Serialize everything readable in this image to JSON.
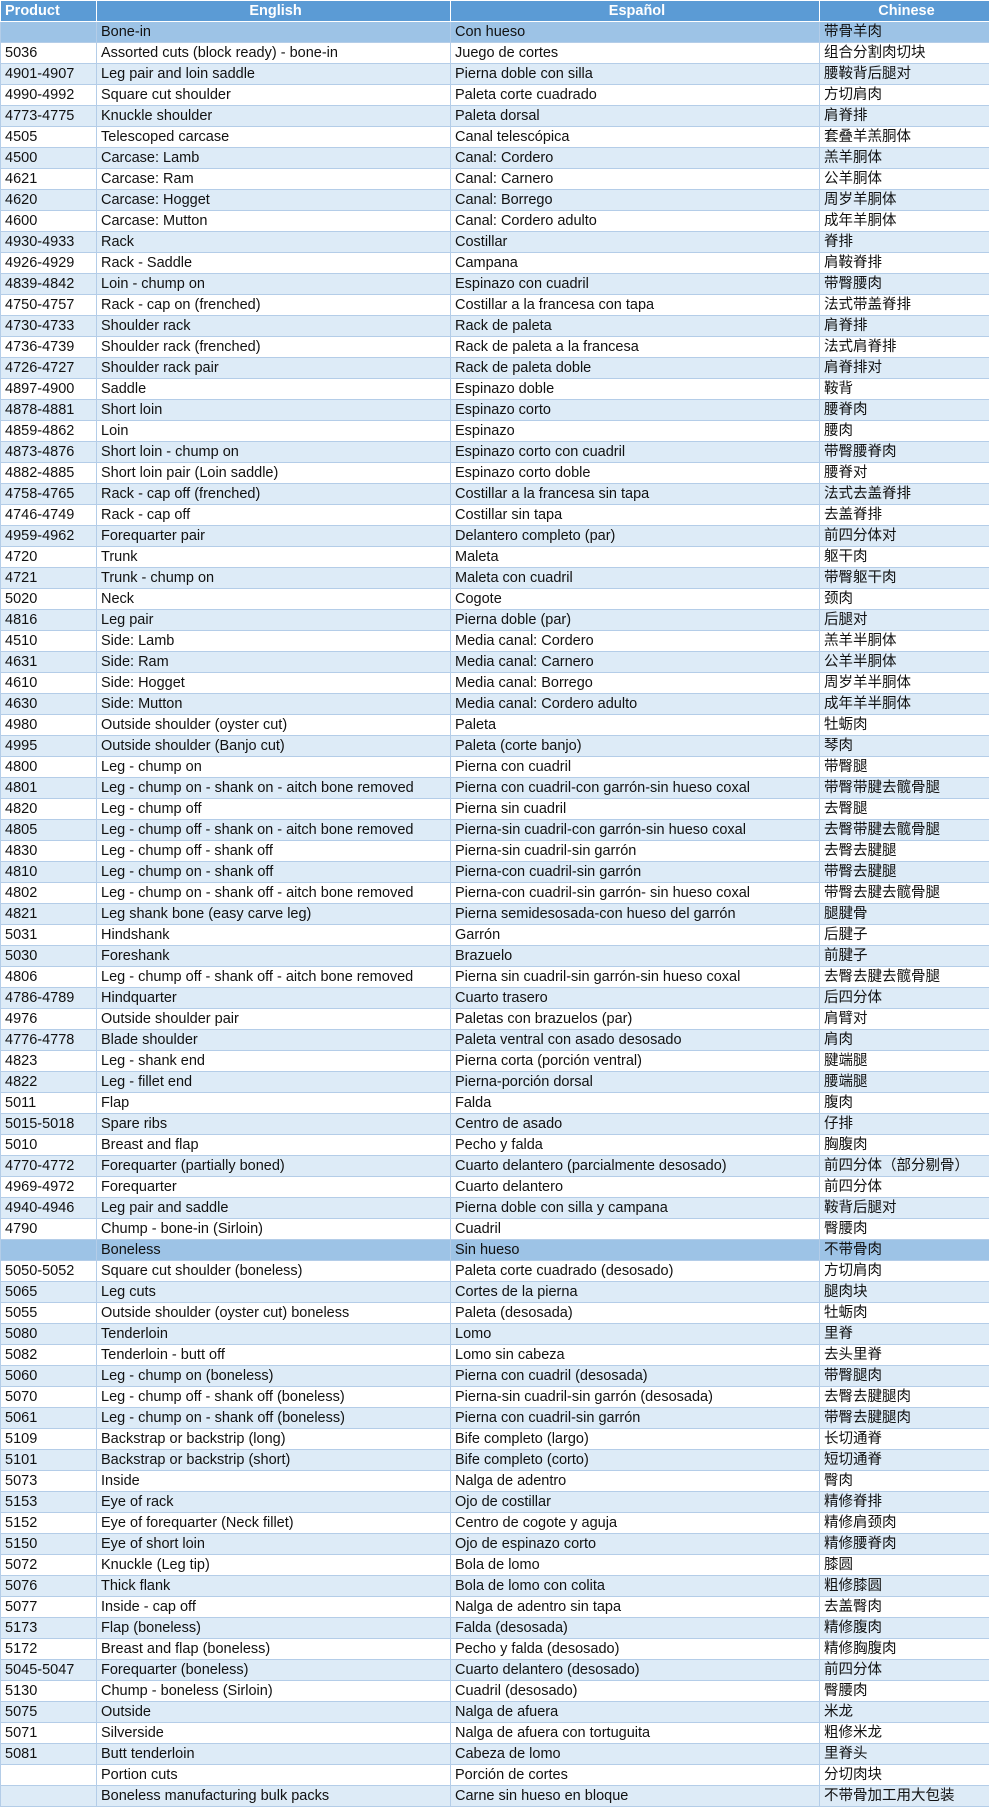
{
  "table": {
    "header": [
      "Product",
      "English",
      "Español",
      "Chinese"
    ],
    "groups": [
      {
        "heading": [
          "Bone-in",
          "Con hueso",
          "带骨羊肉"
        ],
        "rows": [
          [
            "5036",
            "Assorted cuts (block ready) - bone-in",
            "Juego de cortes",
            "组合分割肉切块"
          ],
          [
            "4901-4907",
            "Leg pair and loin saddle",
            "Pierna doble con silla",
            "腰鞍背后腿对"
          ],
          [
            "4990-4992",
            "Square cut shoulder",
            "Paleta corte cuadrado",
            "方切肩肉"
          ],
          [
            "4773-4775",
            "Knuckle shoulder",
            "Paleta dorsal",
            "肩脊排"
          ],
          [
            "4505",
            "Telescoped carcase",
            "Canal telescópica",
            "套叠羊羔胴体"
          ],
          [
            "4500",
            "Carcase: Lamb",
            "Canal: Cordero",
            "羔羊胴体"
          ],
          [
            "4621",
            "Carcase: Ram",
            "Canal: Carnero",
            "公羊胴体"
          ],
          [
            "4620",
            "Carcase: Hogget",
            "Canal: Borrego",
            "周岁羊胴体"
          ],
          [
            "4600",
            "Carcase: Mutton",
            "Canal: Cordero adulto",
            "成年羊胴体"
          ],
          [
            "4930-4933",
            "Rack",
            "Costillar",
            "脊排"
          ],
          [
            "4926-4929",
            "Rack - Saddle",
            "Campana",
            "肩鞍脊排"
          ],
          [
            "4839-4842",
            "Loin - chump on",
            "Espinazo con cuadril",
            "带臀腰肉"
          ],
          [
            "4750-4757",
            "Rack - cap on (frenched)",
            "Costillar a la francesa con tapa",
            "法式带盖脊排"
          ],
          [
            "4730-4733",
            "Shoulder rack",
            "Rack de paleta",
            "肩脊排"
          ],
          [
            "4736-4739",
            "Shoulder rack (frenched)",
            "Rack de paleta a la francesa",
            "法式肩脊排"
          ],
          [
            "4726-4727",
            "Shoulder rack pair",
            "Rack de paleta doble",
            "肩脊排对"
          ],
          [
            "4897-4900",
            "Saddle",
            "Espinazo doble",
            "鞍背"
          ],
          [
            "4878-4881",
            "Short loin",
            "Espinazo corto",
            "腰脊肉"
          ],
          [
            "4859-4862",
            "Loin",
            "Espinazo",
            "腰肉"
          ],
          [
            "4873-4876",
            "Short loin - chump on",
            "Espinazo corto con cuadril",
            "带臀腰脊肉"
          ],
          [
            "4882-4885",
            "Short loin pair (Loin saddle)",
            "Espinazo corto doble",
            "腰脊对"
          ],
          [
            "4758-4765",
            "Rack - cap off (frenched)",
            "Costillar a la francesa sin tapa",
            "法式去盖脊排"
          ],
          [
            "4746-4749",
            "Rack - cap off",
            "Costillar sin tapa",
            "去盖脊排"
          ],
          [
            "4959-4962",
            "Forequarter pair",
            "Delantero completo (par)",
            "前四分体对"
          ],
          [
            "4720",
            "Trunk",
            "Maleta",
            "躯干肉"
          ],
          [
            "4721",
            "Trunk - chump on",
            "Maleta con cuadril",
            "带臀躯干肉"
          ],
          [
            "5020",
            "Neck",
            "Cogote",
            "颈肉"
          ],
          [
            "4816",
            "Leg pair",
            "Pierna doble (par)",
            "后腿对"
          ],
          [
            "4510",
            "Side: Lamb",
            "Media canal: Cordero",
            "羔羊半胴体"
          ],
          [
            "4631",
            "Side: Ram",
            "Media canal: Carnero",
            "公羊半胴体"
          ],
          [
            "4610",
            "Side: Hogget",
            "Media canal: Borrego",
            "周岁羊半胴体"
          ],
          [
            "4630",
            "Side: Mutton",
            "Media canal: Cordero adulto",
            "成年羊半胴体"
          ],
          [
            "4980",
            "Outside shoulder (oyster cut)",
            "Paleta",
            "牡蛎肉"
          ],
          [
            "4995",
            "Outside shoulder (Banjo cut)",
            "Paleta (corte banjo)",
            "琴肉"
          ],
          [
            "4800",
            "Leg - chump on",
            "Pierna con cuadril",
            "带臀腿"
          ],
          [
            "4801",
            "Leg - chump on - shank on - aitch bone removed",
            "Pierna con cuadril-con garrón-sin hueso coxal",
            "带臀带腱去髋骨腿"
          ],
          [
            "4820",
            "Leg - chump off",
            "Pierna sin cuadril",
            "去臀腿"
          ],
          [
            "4805",
            "Leg - chump off - shank on - aitch bone removed",
            "Pierna-sin cuadril-con garrón-sin hueso coxal",
            "去臀带腱去髋骨腿"
          ],
          [
            "4830",
            "Leg - chump off - shank off",
            "Pierna-sin cuadril-sin garrón",
            "去臀去腱腿"
          ],
          [
            "4810",
            "Leg - chump on - shank off",
            "Pierna-con cuadril-sin garrón",
            "带臀去腱腿"
          ],
          [
            "4802",
            "Leg - chump on - shank off - aitch bone removed",
            "Pierna-con cuadril-sin garrón- sin hueso coxal",
            "带臀去腱去髋骨腿"
          ],
          [
            "4821",
            "Leg shank bone (easy carve leg)",
            "Pierna semidesosada-con hueso del garrón",
            "腿腱骨"
          ],
          [
            "5031",
            "Hindshank",
            "Garrón",
            "后腱子"
          ],
          [
            "5030",
            "Foreshank",
            "Brazuelo",
            "前腱子"
          ],
          [
            "4806",
            "Leg - chump off - shank off - aitch bone removed",
            "Pierna sin cuadril-sin garrón-sin hueso coxal",
            "去臀去腱去髋骨腿"
          ],
          [
            "4786-4789",
            "Hindquarter",
            "Cuarto trasero",
            "后四分体"
          ],
          [
            "4976",
            "Outside shoulder pair",
            "Paletas con brazuelos (par)",
            "肩臂对"
          ],
          [
            "4776-4778",
            "Blade shoulder",
            "Paleta ventral con asado desosado",
            "肩肉"
          ],
          [
            "4823",
            "Leg - shank end",
            "Pierna corta (porción ventral)",
            "腱端腿"
          ],
          [
            "4822",
            "Leg - fillet end",
            "Pierna-porción dorsal",
            "腰端腿"
          ],
          [
            "5011",
            "Flap",
            "Falda",
            "腹肉"
          ],
          [
            "5015-5018",
            "Spare ribs",
            "Centro de asado",
            "仔排"
          ],
          [
            "5010",
            "Breast and flap",
            "Pecho y falda",
            "胸腹肉"
          ],
          [
            "4770-4772",
            "Forequarter (partially boned)",
            "Cuarto delantero (parcialmente desosado)",
            "前四分体（部分剔骨）"
          ],
          [
            "4969-4972",
            "Forequarter",
            "Cuarto delantero",
            "前四分体"
          ],
          [
            "4940-4946",
            "Leg pair and saddle",
            "Pierna doble con silla y campana",
            "鞍背后腿对"
          ],
          [
            "4790",
            "Chump - bone-in (Sirloin)",
            "Cuadril",
            "臀腰肉"
          ]
        ]
      },
      {
        "heading": [
          "Boneless",
          "Sin hueso",
          "不带骨肉"
        ],
        "rows": [
          [
            "5050-5052",
            "Square cut shoulder (boneless)",
            "Paleta corte cuadrado (desosado)",
            "方切肩肉"
          ],
          [
            "5065",
            "Leg cuts",
            "Cortes de la pierna",
            "腿肉块"
          ],
          [
            "5055",
            "Outside shoulder (oyster cut) boneless",
            "Paleta (desosada)",
            "牡蛎肉"
          ],
          [
            "5080",
            "Tenderloin",
            "Lomo",
            "里脊"
          ],
          [
            "5082",
            "Tenderloin - butt off",
            "Lomo sin cabeza",
            "去头里脊"
          ],
          [
            "5060",
            "Leg - chump on (boneless)",
            "Pierna con cuadril (desosada)",
            "带臀腿肉"
          ],
          [
            "5070",
            "Leg - chump off - shank off (boneless)",
            "Pierna-sin cuadril-sin garrón (desosada)",
            "去臀去腱腿肉"
          ],
          [
            "5061",
            "Leg - chump on - shank off (boneless)",
            "Pierna con cuadril-sin garrón",
            "带臀去腱腿肉"
          ],
          [
            "5109",
            "Backstrap or backstrip (long)",
            "Bife completo (largo)",
            "长切通脊"
          ],
          [
            "5101",
            "Backstrap or backstrip (short)",
            "Bife completo (corto)",
            "短切通脊"
          ],
          [
            "5073",
            "Inside",
            "Nalga de adentro",
            "臀肉"
          ],
          [
            "5153",
            "Eye of rack",
            "Ojo de costillar",
            "精修脊排"
          ],
          [
            "5152",
            "Eye of forequarter (Neck fillet)",
            "Centro de cogote y aguja",
            "精修肩颈肉"
          ],
          [
            "5150",
            "Eye of short loin",
            "Ojo de espinazo corto",
            "精修腰脊肉"
          ],
          [
            "5072",
            "Knuckle (Leg tip)",
            "Bola de lomo",
            "膝圆"
          ],
          [
            "5076",
            "Thick flank",
            "Bola de lomo con colita",
            "粗修膝圆"
          ],
          [
            "5077",
            "Inside - cap off",
            "Nalga de adentro sin tapa",
            "去盖臀肉"
          ],
          [
            "5173",
            "Flap (boneless)",
            "Falda (desosada)",
            "精修腹肉"
          ],
          [
            "5172",
            "Breast and flap (boneless)",
            "Pecho y falda (desosado)",
            "精修胸腹肉"
          ],
          [
            "5045-5047",
            "Forequarter (boneless)",
            "Cuarto delantero (desosado)",
            "前四分体"
          ],
          [
            "5130",
            "Chump - boneless (Sirloin)",
            "Cuadril (desosado)",
            "臀腰肉"
          ],
          [
            "5075",
            "Outside",
            "Nalga de afuera",
            "米龙"
          ],
          [
            "5071",
            "Silverside",
            "Nalga de afuera con tortuguita",
            "粗修米龙"
          ],
          [
            "5081",
            "Butt tenderloin",
            "Cabeza de lomo",
            "里脊头"
          ],
          [
            null,
            "Portion cuts",
            "Porción de cortes",
            "分切肉块"
          ],
          [
            null,
            "Boneless manufacturing bulk packs",
            "Carne sin hueso en bloque",
            "不带骨加工用大包装"
          ]
        ]
      }
    ]
  }
}
